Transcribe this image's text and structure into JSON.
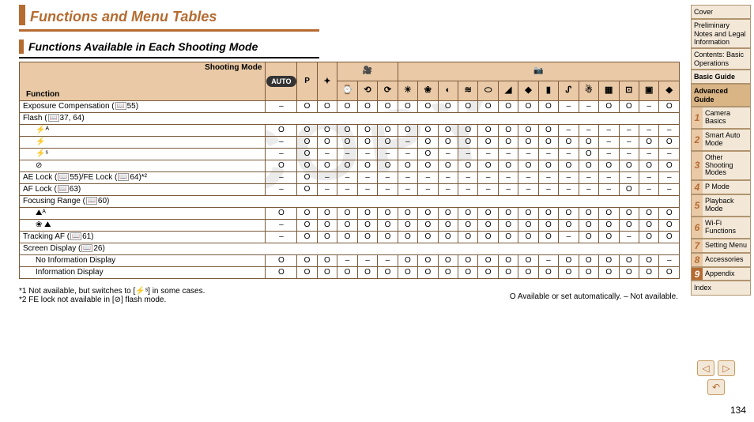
{
  "title": "Functions and Menu Tables",
  "subtitle": "Functions Available in Each Shooting Mode",
  "header_labels": {
    "shooting_mode": "Shooting Mode",
    "function": "Function"
  },
  "mode_columns": {
    "auto": "AUTO",
    "p": "P",
    "group_movie_count": 4,
    "group_camera_count": 15,
    "icons": [
      "✦",
      "⌚",
      "⟲",
      "⟳",
      "☀",
      "❀",
      "◐",
      "≋",
      "⬭",
      "◢",
      "◆",
      "▮",
      "ᔑ",
      "☃",
      "▦",
      "⊡",
      "▣"
    ]
  },
  "rows": [
    {
      "label": "Exposure Compensation (",
      "ref": "55",
      "suffix": ")",
      "indent": false,
      "cells": [
        "–",
        "O",
        "O",
        "O",
        "O",
        "O",
        "O",
        "O",
        "O",
        "O",
        "O",
        "O",
        "O",
        "O",
        "–",
        "–",
        "O",
        "O",
        "–",
        "O"
      ]
    },
    {
      "label": "Flash (",
      "ref": "37, 64",
      "suffix": ")",
      "indent": false,
      "cells": null
    },
    {
      "label": "⚡ᴬ",
      "indent": true,
      "cells": [
        "O",
        "O",
        "O",
        "O",
        "O",
        "O",
        "O",
        "O",
        "O",
        "O",
        "O",
        "O",
        "O",
        "O",
        "–",
        "–",
        "–",
        "–",
        "–",
        "–"
      ]
    },
    {
      "label": "⚡",
      "indent": true,
      "cells": [
        "–",
        "O",
        "O",
        "O",
        "O",
        "O",
        "–",
        "O",
        "O",
        "O",
        "O",
        "O",
        "O",
        "O",
        "O",
        "O",
        "–",
        "–",
        "O",
        "O"
      ]
    },
    {
      "label": "⚡ˢ",
      "indent": true,
      "cells": [
        "–",
        "O",
        "–",
        "–",
        "–",
        "–",
        "–",
        "O",
        "–",
        "–",
        "–",
        "–",
        "–",
        "–",
        "–",
        "O",
        "–",
        "–",
        "–",
        "–"
      ]
    },
    {
      "label": "⊘",
      "indent": true,
      "cells": [
        "O",
        "O",
        "O",
        "O",
        "O",
        "O",
        "O",
        "O",
        "O",
        "O",
        "O",
        "O",
        "O",
        "O",
        "O",
        "O",
        "O",
        "O",
        "O",
        "O"
      ]
    },
    {
      "label": "AE Lock (",
      "ref": "55",
      "mid": ")/FE Lock (",
      "ref2": "64",
      "suffix": ")*²",
      "indent": false,
      "cells": [
        "–",
        "O",
        "–",
        "–",
        "–",
        "–",
        "–",
        "–",
        "–",
        "–",
        "–",
        "–",
        "–",
        "–",
        "–",
        "–",
        "–",
        "–",
        "–",
        "–"
      ]
    },
    {
      "label": "AF Lock (",
      "ref": "63",
      "suffix": ")",
      "indent": false,
      "cells": [
        "–",
        "O",
        "–",
        "–",
        "–",
        "–",
        "–",
        "–",
        "–",
        "–",
        "–",
        "–",
        "–",
        "–",
        "–",
        "–",
        "–",
        "O",
        "–",
        "–"
      ]
    },
    {
      "label": "Focusing Range (",
      "ref": "60",
      "suffix": ")",
      "indent": false,
      "cells": null
    },
    {
      "label": "⛰ᴬ",
      "indent": true,
      "cells": [
        "O",
        "O",
        "O",
        "O",
        "O",
        "O",
        "O",
        "O",
        "O",
        "O",
        "O",
        "O",
        "O",
        "O",
        "O",
        "O",
        "O",
        "O",
        "O",
        "O"
      ]
    },
    {
      "label": "❀ ⛰",
      "indent": true,
      "cells": [
        "–",
        "O",
        "O",
        "O",
        "O",
        "O",
        "O",
        "O",
        "O",
        "O",
        "O",
        "O",
        "O",
        "O",
        "O",
        "O",
        "O",
        "O",
        "O",
        "O"
      ]
    },
    {
      "label": "Tracking AF (",
      "ref": "61",
      "suffix": ")",
      "indent": false,
      "cells": [
        "–",
        "O",
        "O",
        "O",
        "O",
        "O",
        "O",
        "O",
        "O",
        "O",
        "O",
        "O",
        "O",
        "O",
        "–",
        "O",
        "O",
        "–",
        "O",
        "O"
      ]
    },
    {
      "label": "Screen Display (",
      "ref": "26",
      "suffix": ")",
      "indent": false,
      "cells": null
    },
    {
      "label": "No Information Display",
      "indent": true,
      "cells": [
        "O",
        "O",
        "O",
        "–",
        "–",
        "–",
        "O",
        "O",
        "O",
        "O",
        "O",
        "O",
        "O",
        "–",
        "O",
        "O",
        "O",
        "O",
        "O",
        "–"
      ]
    },
    {
      "label": "Information Display",
      "indent": true,
      "cells": [
        "O",
        "O",
        "O",
        "O",
        "O",
        "O",
        "O",
        "O",
        "O",
        "O",
        "O",
        "O",
        "O",
        "O",
        "O",
        "O",
        "O",
        "O",
        "O",
        "O"
      ]
    }
  ],
  "footnotes": [
    "*1 Not available, but switches to [⚡ˢ] in some cases.",
    "*2 FE lock not available in [⊘] flash mode."
  ],
  "legend": "O Available or set automatically. – Not available.",
  "sidebar": {
    "cover": "Cover",
    "preliminary": "Preliminary Notes and Legal Information",
    "contents": "Contents: Basic Operations",
    "basic_guide": "Basic Guide",
    "advanced_guide": "Advanced Guide",
    "chapters": [
      {
        "n": "1",
        "label": "Camera Basics"
      },
      {
        "n": "2",
        "label": "Smart Auto Mode"
      },
      {
        "n": "3",
        "label": "Other Shooting Modes"
      },
      {
        "n": "4",
        "label": "P Mode"
      },
      {
        "n": "5",
        "label": "Playback Mode"
      },
      {
        "n": "6",
        "label": "Wi-Fi Functions"
      },
      {
        "n": "7",
        "label": "Setting Menu"
      },
      {
        "n": "8",
        "label": "Accessories"
      },
      {
        "n": "9",
        "label": "Appendix"
      }
    ],
    "index": "Index"
  },
  "page_number": "134",
  "colors": {
    "accent": "#b66b30",
    "header_bg": "#e9c9a6",
    "border": "#7a5a3a",
    "sidebar_bg": "#f3e8d8",
    "sidebar_head": "#d9b484"
  }
}
